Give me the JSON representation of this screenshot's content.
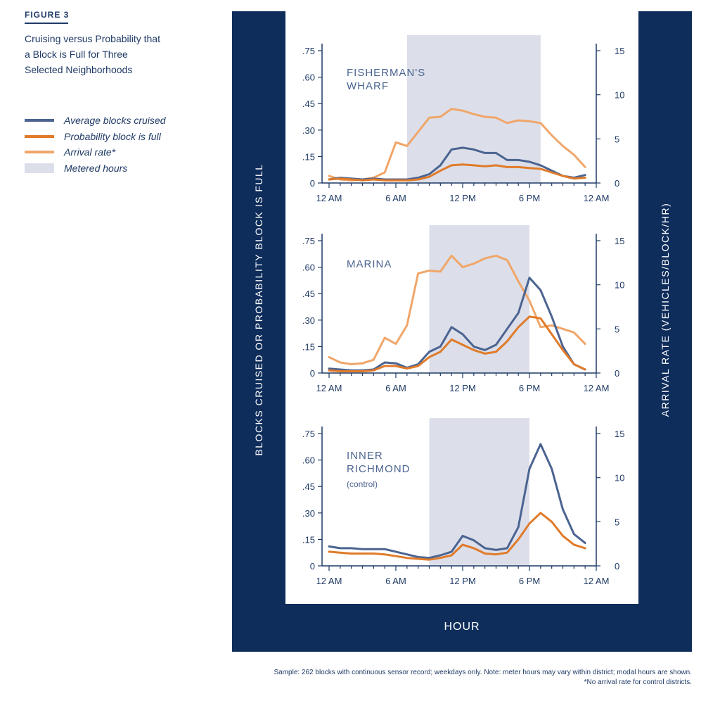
{
  "figure": {
    "label": "FIGURE 3",
    "title": "Cruising versus Probability that a Block is Full for Three Selected Neighborhoods"
  },
  "legend": [
    {
      "label": "Average blocks cruised",
      "color": "#4b6491",
      "kind": "line"
    },
    {
      "label": "Probability block is full",
      "color": "#e07b2a",
      "kind": "line"
    },
    {
      "label": "Arrival rate*",
      "color": "#f0a66a",
      "kind": "line"
    },
    {
      "label": "Metered hours",
      "color": "#dcdfea",
      "kind": "box"
    }
  ],
  "axes": {
    "left_label": "BLOCKS CRUISED OR PROBABILITY BLOCK IS FULL",
    "right_label": "ARRIVAL RATE (VEHICLES/BLOCK/HR)",
    "x_label": "HOUR"
  },
  "notes": {
    "line1": "Sample: 262 blocks with continuous sensor record; weekdays only. Note: meter hours may vary within district; modal hours are shown.",
    "line2": "*No arrival rate for control districts."
  },
  "chart_data": [
    {
      "type": "line",
      "title": "FISHERMAN'S WHARF",
      "x": [
        0,
        1,
        2,
        3,
        4,
        5,
        6,
        7,
        8,
        9,
        10,
        11,
        12,
        13,
        14,
        15,
        16,
        17,
        18,
        19,
        20,
        21,
        22,
        23
      ],
      "xticks": [
        "12 AM",
        "6 AM",
        "12 PM",
        "6 PM",
        "12 AM"
      ],
      "xtick_hours": [
        0,
        6,
        12,
        18,
        24
      ],
      "xlim": [
        0,
        23
      ],
      "ylim_left": [
        0,
        0.75
      ],
      "yticks_left": [
        "0",
        ".15",
        ".30",
        ".45",
        ".60",
        ".75"
      ],
      "ylim_right": [
        0,
        15
      ],
      "yticks_right": [
        "0",
        "5",
        "10",
        "15"
      ],
      "metered_hours": [
        7,
        19
      ],
      "series": [
        {
          "name": "Average blocks cruised",
          "axis": "left",
          "values": [
            0.02,
            0.03,
            0.025,
            0.02,
            0.025,
            0.02,
            0.02,
            0.02,
            0.03,
            0.05,
            0.1,
            0.19,
            0.2,
            0.19,
            0.17,
            0.17,
            0.13,
            0.13,
            0.12,
            0.1,
            0.07,
            0.04,
            0.03,
            0.045
          ]
        },
        {
          "name": "Probability block is full",
          "axis": "left",
          "values": [
            0.02,
            0.025,
            0.02,
            0.015,
            0.02,
            0.015,
            0.015,
            0.015,
            0.02,
            0.035,
            0.07,
            0.1,
            0.105,
            0.1,
            0.095,
            0.1,
            0.09,
            0.09,
            0.085,
            0.08,
            0.06,
            0.04,
            0.025,
            0.03
          ]
        },
        {
          "name": "Arrival rate*",
          "axis": "right",
          "values": [
            0.8,
            0.4,
            0.3,
            0.4,
            0.6,
            1.2,
            4.6,
            4.2,
            5.8,
            7.4,
            7.5,
            8.4,
            8.2,
            7.8,
            7.5,
            7.4,
            6.8,
            7.1,
            7.0,
            6.8,
            5.4,
            4.2,
            3.2,
            1.8
          ]
        }
      ]
    },
    {
      "type": "line",
      "title": "MARINA",
      "x": [
        0,
        1,
        2,
        3,
        4,
        5,
        6,
        7,
        8,
        9,
        10,
        11,
        12,
        13,
        14,
        15,
        16,
        17,
        18,
        19,
        20,
        21,
        22,
        23
      ],
      "xticks": [
        "12 AM",
        "6 AM",
        "12 PM",
        "6 PM",
        "12 AM"
      ],
      "xtick_hours": [
        0,
        6,
        12,
        18,
        24
      ],
      "xlim": [
        0,
        23
      ],
      "ylim_left": [
        0,
        0.75
      ],
      "yticks_left": [
        "0",
        ".15",
        ".30",
        ".45",
        ".60",
        ".75"
      ],
      "ylim_right": [
        0,
        15
      ],
      "yticks_right": [
        "0",
        "5",
        "10",
        "15"
      ],
      "metered_hours": [
        9,
        18
      ],
      "series": [
        {
          "name": "Average blocks cruised",
          "axis": "left",
          "values": [
            0.025,
            0.02,
            0.015,
            0.015,
            0.02,
            0.06,
            0.055,
            0.03,
            0.05,
            0.12,
            0.15,
            0.26,
            0.22,
            0.15,
            0.13,
            0.16,
            0.25,
            0.34,
            0.54,
            0.47,
            0.32,
            0.15,
            0.05,
            0.02
          ]
        },
        {
          "name": "Probability block is full",
          "axis": "left",
          "values": [
            0.015,
            0.01,
            0.01,
            0.01,
            0.015,
            0.04,
            0.04,
            0.025,
            0.04,
            0.09,
            0.12,
            0.19,
            0.16,
            0.13,
            0.11,
            0.12,
            0.18,
            0.26,
            0.32,
            0.31,
            0.22,
            0.13,
            0.05,
            0.02
          ]
        },
        {
          "name": "Arrival rate*",
          "axis": "right",
          "values": [
            1.8,
            1.2,
            1.0,
            1.1,
            1.5,
            4.0,
            3.3,
            5.4,
            11.3,
            11.6,
            11.5,
            13.3,
            12.0,
            12.4,
            13.0,
            13.3,
            12.8,
            10.4,
            8.2,
            5.2,
            5.4,
            5.0,
            4.6,
            3.3
          ]
        }
      ]
    },
    {
      "type": "line",
      "title": "INNER RICHMOND",
      "subtitle": "(control)",
      "x": [
        0,
        1,
        2,
        3,
        4,
        5,
        6,
        7,
        8,
        9,
        10,
        11,
        12,
        13,
        14,
        15,
        16,
        17,
        18,
        19,
        20,
        21,
        22,
        23
      ],
      "xticks": [
        "12 AM",
        "6 AM",
        "12 PM",
        "6 PM",
        "12 AM"
      ],
      "xtick_hours": [
        0,
        6,
        12,
        18,
        24
      ],
      "xlim": [
        0,
        23
      ],
      "ylim_left": [
        0,
        0.75
      ],
      "yticks_left": [
        "0",
        ".15",
        ".30",
        ".45",
        ".60",
        ".75"
      ],
      "ylim_right": [
        0,
        15
      ],
      "yticks_right": [
        "0",
        "5",
        "10",
        "15"
      ],
      "metered_hours": [
        9,
        18
      ],
      "series": [
        {
          "name": "Average blocks cruised",
          "axis": "left",
          "values": [
            0.11,
            0.1,
            0.1,
            0.095,
            0.095,
            0.095,
            0.08,
            0.065,
            0.05,
            0.045,
            0.06,
            0.08,
            0.17,
            0.145,
            0.1,
            0.09,
            0.1,
            0.22,
            0.55,
            0.69,
            0.55,
            0.32,
            0.18,
            0.13
          ]
        },
        {
          "name": "Probability block is full",
          "axis": "left",
          "values": [
            0.08,
            0.075,
            0.07,
            0.07,
            0.07,
            0.065,
            0.055,
            0.045,
            0.04,
            0.035,
            0.045,
            0.06,
            0.12,
            0.1,
            0.07,
            0.065,
            0.075,
            0.15,
            0.24,
            0.3,
            0.25,
            0.17,
            0.12,
            0.1
          ]
        }
      ]
    }
  ]
}
